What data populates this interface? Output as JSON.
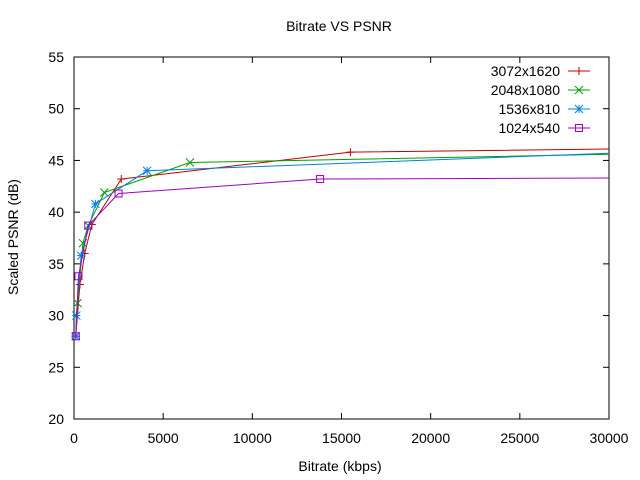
{
  "chart_data": {
    "type": "line",
    "title": "Bitrate VS PSNR",
    "xlabel": "Bitrate (kbps)",
    "ylabel": "Scaled PSNR (dB)",
    "xlim": [
      0,
      30000
    ],
    "ylim": [
      20,
      55
    ],
    "xticks": [
      0,
      5000,
      10000,
      15000,
      20000,
      25000,
      30000
    ],
    "yticks": [
      20,
      25,
      30,
      35,
      40,
      45,
      50,
      55
    ],
    "grid": false,
    "legend_position": "top-right",
    "series": [
      {
        "name": "3072x1620",
        "color": "#c00000",
        "marker": "plus",
        "points": [
          [
            100,
            28.0
          ],
          [
            330,
            33.0
          ],
          [
            600,
            36.0
          ],
          [
            1000,
            38.8
          ],
          [
            2650,
            43.2
          ],
          [
            15500,
            45.8
          ],
          [
            30000,
            46.1
          ]
        ]
      },
      {
        "name": "2048x1080",
        "color": "#00a000",
        "marker": "cross",
        "points": [
          [
            100,
            28.0
          ],
          [
            200,
            31.2
          ],
          [
            500,
            37.0
          ],
          [
            800,
            38.7
          ],
          [
            1700,
            41.9
          ],
          [
            6500,
            44.8
          ],
          [
            30000,
            45.6
          ]
        ]
      },
      {
        "name": "1536x810",
        "color": "#0080e0",
        "marker": "star",
        "points": [
          [
            100,
            28.0
          ],
          [
            130,
            30.0
          ],
          [
            400,
            35.8
          ],
          [
            1200,
            40.8
          ],
          [
            4100,
            44.0
          ],
          [
            30000,
            45.7
          ]
        ]
      },
      {
        "name": "1024x540",
        "color": "#a000c0",
        "marker": "square",
        "points": [
          [
            100,
            28.0
          ],
          [
            250,
            33.8
          ],
          [
            800,
            38.7
          ],
          [
            2500,
            41.8
          ],
          [
            13800,
            43.2
          ],
          [
            30000,
            43.3
          ]
        ]
      }
    ]
  }
}
